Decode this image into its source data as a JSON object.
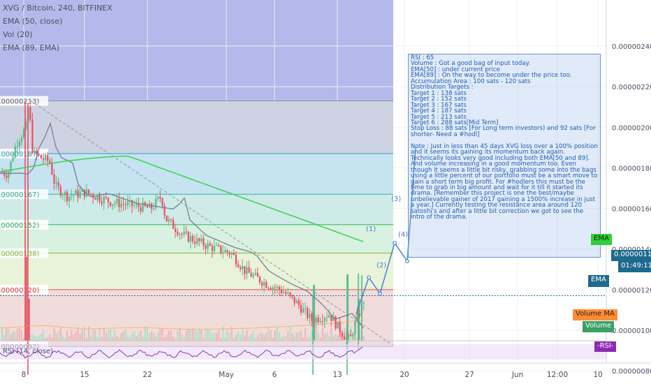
{
  "header": {
    "symbol_line": "XVG / Bitcoin, 240, BITFINEX",
    "indicators": [
      "EMA (50, close)",
      "Vol (20)",
      "EMA (89, EMA)"
    ]
  },
  "note": {
    "lines": [
      "RSI : 65",
      "Volume : Got a good bag of input today.",
      "EMA[50] : under current price",
      "EMA[89] : On the way to become under the price too.",
      "Accumulation Area : 100 sats - 120 sats",
      "Distribution Targets :",
      "Target 1 : 138 sats",
      "Target 2 : 152 sats",
      "Target 3 : 167 sats",
      "Target 4 : 187 sats",
      "Target 5 : 213 sats",
      "Target 6 : 288 sats[Mid Term]",
      "Stop Loss : 88 sats [For Long term investors) and 92 sats [For shorter- Need a #hodl]",
      "",
      "Note : Just in less than 45 days XVG loss over a 100% position and it seems its gaining its momentum back again. Technically looks very good including both EMA[50 and 89]. And volume increasing in a good momentum too. Even though it seems a little bit risky, grabbing some into the bags using a little percent of our portfolio must be a smart move to gain a short term big profit. For #hodlers this must be the time to grab in big amount and wait for it till it started its drama. [Remember this project is one the best/maybe unbelievable gainer of 2017 gaining a 1500% increase in just a year.] Currently testing the resistance area around 120 satoshi's and after a little bit correction we got to see the intro of the drama."
    ]
  },
  "badges": {
    "ema_top": "EMA",
    "price": "0.00000117",
    "countdown": "01:49:11",
    "ema_mid": "EMA",
    "volume_ma": "Volume MA",
    "volume": "Volume",
    "rsi_study": "RSI (14, close)",
    "rsi_badge": "-RSI-"
  },
  "colors": {
    "up": "#53b987",
    "down": "#eb4d5c",
    "ema50": "#7b7d91",
    "ema89": "#3bd14c",
    "projection": "#4a7fd1",
    "rsi_line": "#8a33c9",
    "note_text": "#1f5fb0"
  },
  "chart_data": {
    "type": "candlestick",
    "symbol": "XVG / Bitcoin",
    "interval": "240",
    "exchange": "BITFINEX",
    "y_axis": {
      "ticks": [
        "0.00000080",
        "0.00000100",
        "0.00000120",
        "0.00000140",
        "0.00000160",
        "0.00000180",
        "0.00000200",
        "0.00000220",
        "0.00000240"
      ],
      "tick_values": [
        8e-07,
        1e-06,
        1.2e-06,
        1.4e-06,
        1.6e-06,
        1.8e-06,
        2e-06,
        2.2e-06,
        2.4e-06
      ],
      "range": [
        7.35e-07,
        2.627e-06
      ]
    },
    "x_axis": {
      "ticks": [
        "8",
        "15",
        "22",
        "May",
        "6",
        "13",
        "20",
        "27",
        "Jun",
        "12:00",
        "10"
      ]
    },
    "fib_levels": [
      {
        "label": "0.00000213)",
        "value": 2.13e-06
      },
      {
        "label": "0.00000187)",
        "value": 1.87e-06
      },
      {
        "label": "0.00000167)",
        "value": 1.67e-06
      },
      {
        "label": "0.00000152)",
        "value": 1.52e-06
      },
      {
        "label": "0.00000138)",
        "value": 1.38e-06
      },
      {
        "label": "0.00000120)",
        "value": 1.2e-06
      },
      {
        "label": "0.00000092)",
        "value": 9.2e-07
      }
    ],
    "last_price": 1.17e-06,
    "projection": {
      "labels": [
        "(1)",
        "(2)",
        "(3)",
        "(4)"
      ],
      "points": [
        [
          0,
          1.08e-06
        ],
        [
          1,
          1.26e-06
        ],
        [
          2,
          1.18e-06
        ],
        [
          3,
          1.43e-06
        ],
        [
          4,
          1.34e-06
        ],
        [
          5,
          1.9e-06
        ]
      ]
    },
    "rsi": {
      "name": "RSI (14, close)",
      "value": 65
    }
  }
}
